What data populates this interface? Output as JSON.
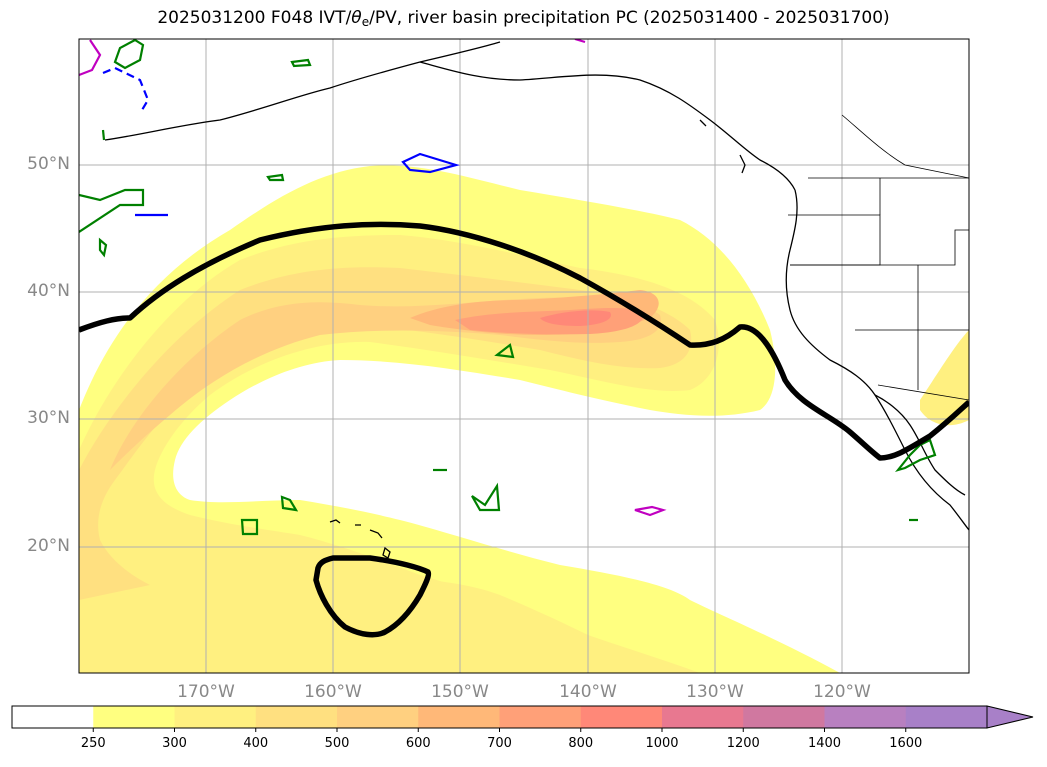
{
  "title": {
    "prefix": "2025031200 F048 IVT/",
    "theta": "θ",
    "theta_sub": "e",
    "suffix": "/PV, river basin precipitation PC (2025031400 - 2025031700)"
  },
  "map": {
    "lat_labels": [
      "50°N",
      "40°N",
      "30°N",
      "20°N"
    ],
    "lon_labels": [
      "170°W",
      "160°W",
      "150°W",
      "140°W",
      "130°W",
      "120°W"
    ]
  },
  "colorbar": {
    "tick_labels": [
      "250",
      "300",
      "400",
      "500",
      "600",
      "700",
      "800",
      "1000",
      "1200",
      "1400",
      "1600"
    ],
    "colors": [
      "#ffffff",
      "#ffff80",
      "#fff080",
      "#ffe080",
      "#ffd080",
      "#ffb878",
      "#ffa078",
      "#ff8878",
      "#e87890",
      "#d078a0",
      "#b880c0",
      "#a880c8"
    ]
  },
  "colors": {
    "contour_black": "#000000",
    "pv_green": "#008000",
    "pv_blue": "#0000ff",
    "pv_magenta": "#c000c0",
    "gridline": "#b0b0b0"
  }
}
